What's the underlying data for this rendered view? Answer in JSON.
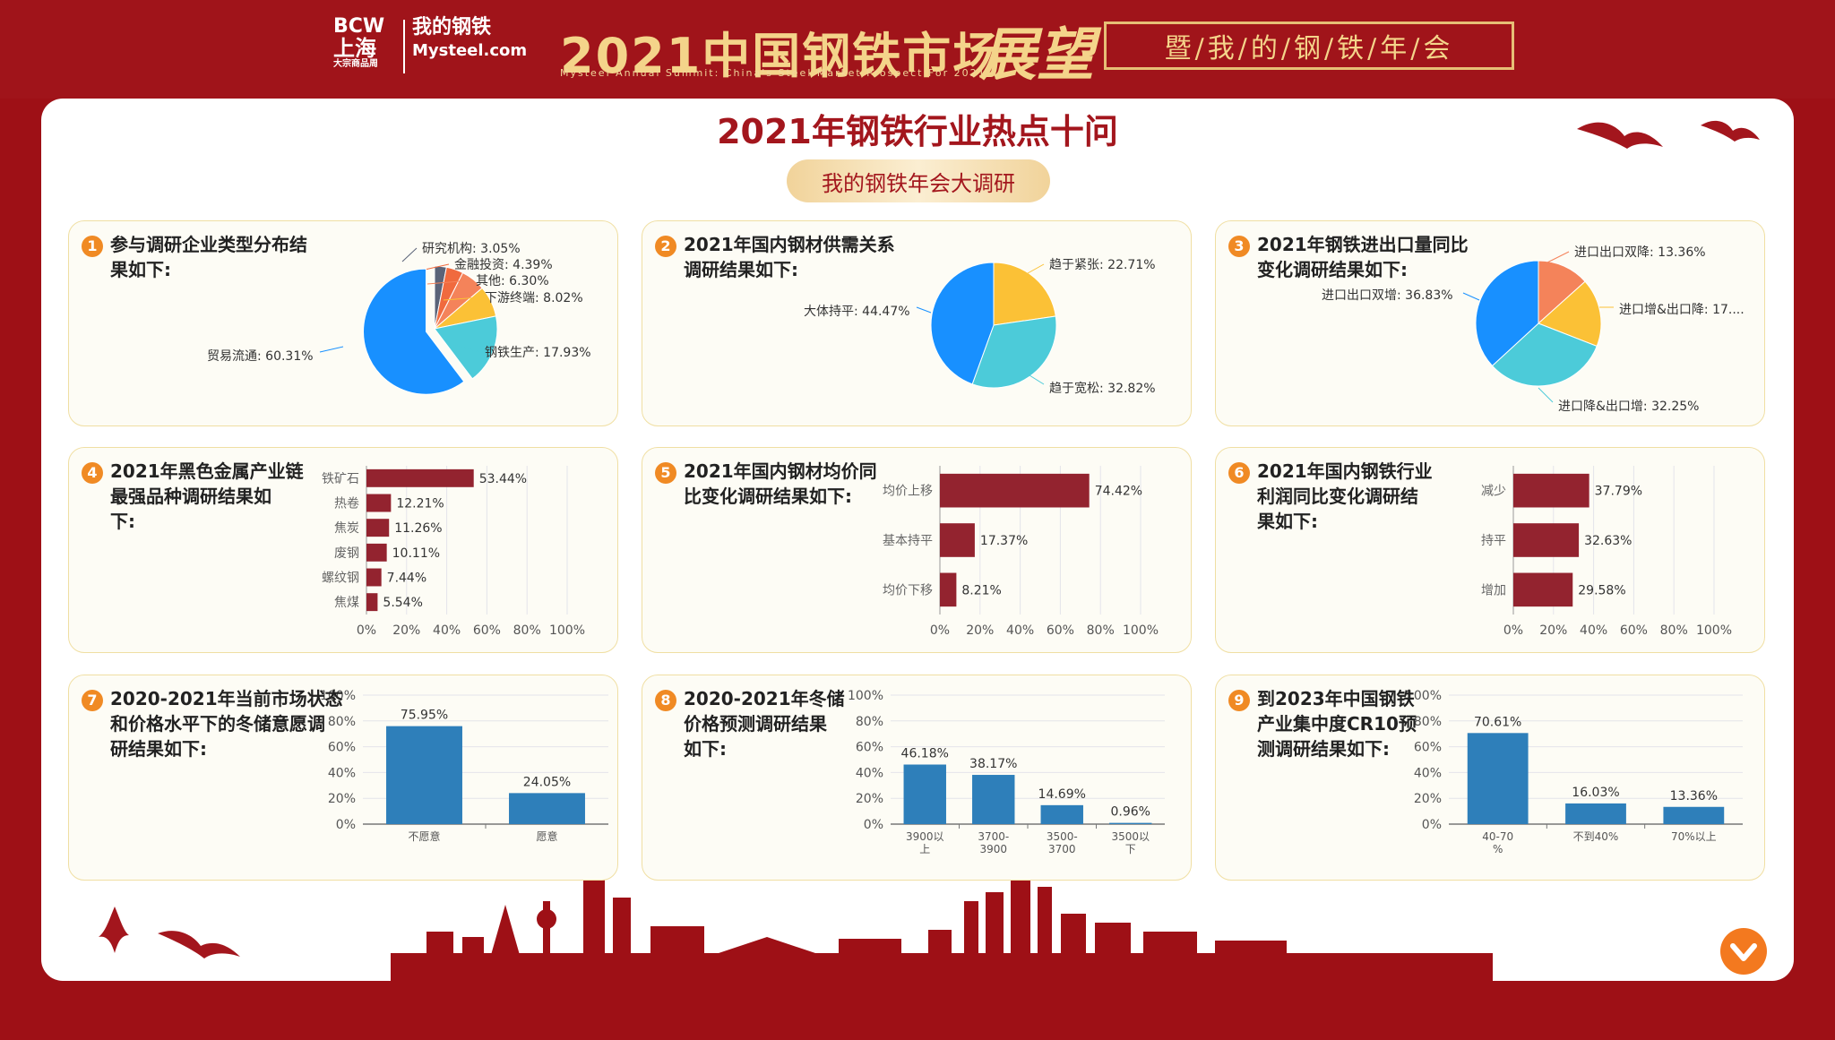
{
  "header": {
    "logo_bcw": "BCW",
    "logo_bcw_city": "上海",
    "logo_bcw_sub": "大宗商品周",
    "logo_my": "我的钢铁",
    "logo_my_com": "Mysteel.com",
    "headline": "2021中国钢铁市场",
    "headline_sub": "Mysteel Annual Summit: China's Steel Market Prospect For 2021",
    "zhanwang": "展望",
    "banner": "暨/我/的/钢/铁/年/会"
  },
  "page": {
    "title": "2021年钢铁行业热点十问",
    "pill": "我的钢铁年会大调研"
  },
  "colors": {
    "red": "#a3161d",
    "bar_red": "#93232f",
    "bar_blue": "#2e7fba",
    "orange": "#f08a24"
  },
  "panels": [
    {
      "num": "1",
      "title_lines": [
        "参与调研企业类型分布结",
        "果如下:"
      ]
    },
    {
      "num": "2",
      "title_lines": [
        "2021年国内钢材供需关系",
        "调研结果如下:"
      ]
    },
    {
      "num": "3",
      "title_lines": [
        "2021年钢铁进出口量同比",
        "变化调研结果如下:"
      ]
    },
    {
      "num": "4",
      "title_lines": [
        "2021年黑色金属产业链",
        "最强品种调研结果如",
        "下:"
      ]
    },
    {
      "num": "5",
      "title_lines": [
        "2021年国内钢材均价同",
        "比变化调研结果如下:"
      ]
    },
    {
      "num": "6",
      "title_lines": [
        "2021年国内钢铁行业",
        "利润同比变化调研结",
        "果如下:"
      ]
    },
    {
      "num": "7",
      "title_lines": [
        "2020-2021年当前市场状态",
        "和价格水平下的冬储意愿调",
        "研结果如下:"
      ]
    },
    {
      "num": "8",
      "title_lines": [
        "2020-2021年冬储",
        "价格预测调研结果",
        "如下:"
      ]
    },
    {
      "num": "9",
      "title_lines": [
        "到2023年中国钢铁",
        "产业集中度CR10预",
        "测调研结果如下:"
      ]
    }
  ],
  "chart_data": [
    {
      "type": "pie",
      "slices": [
        {
          "label": "研究机构: 3.05%",
          "value": 3.05,
          "color": "#5a6378"
        },
        {
          "label": "金融投资: 4.39%",
          "value": 4.39,
          "color": "#f06a3e"
        },
        {
          "label": "其他: 6.30%",
          "value": 6.3,
          "color": "#f4835a"
        },
        {
          "label": "下游终端: 8.02%",
          "value": 8.02,
          "color": "#fbc136"
        },
        {
          "label": "钢铁生产: 17.93%",
          "value": 17.93,
          "color": "#4ccbd9"
        },
        {
          "label": "贸易流通: 60.31%",
          "value": 60.31,
          "color": "#1890ff"
        }
      ]
    },
    {
      "type": "pie",
      "slices": [
        {
          "label": "趋于紧张: 22.71%",
          "value": 22.71,
          "color": "#fbc136"
        },
        {
          "label": "趋于宽松: 32.82%",
          "value": 32.82,
          "color": "#4ccbd9"
        },
        {
          "label": "大体持平: 44.47%",
          "value": 44.47,
          "color": "#1890ff"
        }
      ]
    },
    {
      "type": "pie",
      "slices": [
        {
          "label": "进口出口双降: 13.36%",
          "value": 13.36,
          "color": "#f4835a"
        },
        {
          "label": "进口增&出口降: 17....",
          "value": 17.56,
          "color": "#fbc136"
        },
        {
          "label": "进口降&出口增: 32.25%",
          "value": 32.25,
          "color": "#4ccbd9"
        },
        {
          "label": "进口出口双增: 36.83%",
          "value": 36.83,
          "color": "#1890ff"
        }
      ]
    },
    {
      "type": "bar",
      "orientation": "horizontal",
      "categories": [
        "铁矿石",
        "热卷",
        "焦炭",
        "废钢",
        "螺纹钢",
        "焦煤"
      ],
      "values": [
        53.44,
        12.21,
        11.26,
        10.11,
        7.44,
        5.54
      ],
      "labels": [
        "53.44%",
        "12.21%",
        "11.26%",
        "10.11%",
        "7.44%",
        "5.54%"
      ],
      "xlim": [
        0,
        100
      ],
      "ticks": [
        "0%",
        "20%",
        "40%",
        "60%",
        "80%",
        "100%"
      ]
    },
    {
      "type": "bar",
      "orientation": "horizontal",
      "categories": [
        "均价上移",
        "基本持平",
        "均价下移"
      ],
      "values": [
        74.42,
        17.37,
        8.21
      ],
      "labels": [
        "74.42%",
        "17.37%",
        "8.21%"
      ],
      "xlim": [
        0,
        100
      ],
      "ticks": [
        "0%",
        "20%",
        "40%",
        "60%",
        "80%",
        "100%"
      ]
    },
    {
      "type": "bar",
      "orientation": "horizontal",
      "categories": [
        "减少",
        "持平",
        "增加"
      ],
      "values": [
        37.79,
        32.63,
        29.58
      ],
      "labels": [
        "37.79%",
        "32.63%",
        "29.58%"
      ],
      "xlim": [
        0,
        100
      ],
      "ticks": [
        "0%",
        "20%",
        "40%",
        "60%",
        "80%",
        "100%"
      ]
    },
    {
      "type": "bar",
      "orientation": "vertical",
      "categories": [
        [
          "不愿意"
        ],
        [
          "愿意"
        ]
      ],
      "values": [
        75.95,
        24.05
      ],
      "labels": [
        "75.95%",
        "24.05%"
      ],
      "ylim": [
        0,
        100
      ],
      "ticks": [
        "0%",
        "20%",
        "40%",
        "60%",
        "80%",
        "100%"
      ]
    },
    {
      "type": "bar",
      "orientation": "vertical",
      "categories": [
        [
          "3900以",
          "上"
        ],
        [
          "3700-",
          "3900"
        ],
        [
          "3500-",
          "3700"
        ],
        [
          "3500以",
          "下"
        ]
      ],
      "values": [
        46.18,
        38.17,
        14.69,
        0.96
      ],
      "labels": [
        "46.18%",
        "38.17%",
        "14.69%",
        "0.96%"
      ],
      "ylim": [
        0,
        100
      ],
      "ticks": [
        "0%",
        "20%",
        "40%",
        "60%",
        "80%",
        "100%"
      ]
    },
    {
      "type": "bar",
      "orientation": "vertical",
      "categories": [
        [
          "40-70",
          "%"
        ],
        [
          "不到40%"
        ],
        [
          "70%以上"
        ]
      ],
      "values": [
        70.61,
        16.03,
        13.36
      ],
      "labels": [
        "70.61%",
        "16.03%",
        "13.36%"
      ],
      "ylim": [
        0,
        100
      ],
      "ticks": [
        "0%",
        "20%",
        "40%",
        "60%",
        "80%",
        "100%"
      ]
    }
  ]
}
